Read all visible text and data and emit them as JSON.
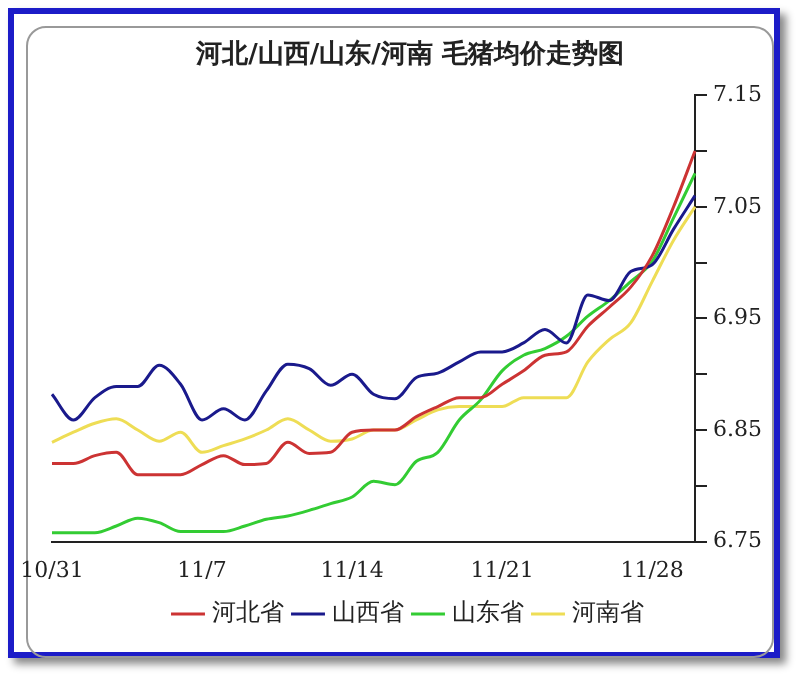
{
  "chart_data": {
    "type": "line",
    "title": "河北/山西/山东/河南 毛猪均价走势图",
    "categories": [
      "10/31",
      null,
      null,
      null,
      null,
      null,
      null,
      "11/7",
      null,
      null,
      null,
      null,
      null,
      null,
      "11/14",
      null,
      null,
      null,
      null,
      null,
      null,
      "11/21",
      null,
      null,
      null,
      null,
      null,
      null,
      "11/28",
      null,
      null
    ],
    "series": [
      {
        "name": "河北省",
        "color": "#cc3333",
        "values": [
          6.82,
          6.82,
          6.827,
          6.83,
          6.81,
          6.81,
          6.81,
          6.819,
          6.827,
          6.819,
          6.82,
          6.839,
          6.829,
          6.83,
          6.848,
          6.85,
          6.85,
          6.862,
          6.871,
          6.879,
          6.879,
          6.891,
          6.903,
          6.917,
          6.92,
          6.943,
          6.96,
          6.978,
          7.006,
          7.05,
          7.1
        ]
      },
      {
        "name": "山西省",
        "color": "#1a1a8c",
        "values": [
          6.882,
          6.859,
          6.879,
          6.889,
          6.889,
          6.908,
          6.891,
          6.859,
          6.869,
          6.859,
          6.885,
          6.909,
          6.905,
          6.89,
          6.9,
          6.882,
          6.878,
          6.897,
          6.901,
          6.911,
          6.92,
          6.92,
          6.928,
          6.94,
          6.928,
          6.971,
          6.966,
          6.992,
          6.998,
          7.03,
          7.06
        ]
      },
      {
        "name": "山东省",
        "color": "#33cc33",
        "values": [
          6.758,
          6.758,
          6.758,
          6.764,
          6.771,
          6.767,
          6.759,
          6.759,
          6.759,
          6.764,
          6.77,
          6.773,
          6.778,
          6.784,
          6.79,
          6.804,
          6.801,
          6.822,
          6.83,
          6.859,
          6.877,
          6.903,
          6.917,
          6.923,
          6.934,
          6.952,
          6.966,
          6.983,
          7.001,
          7.04,
          7.08
        ]
      },
      {
        "name": "河南省",
        "color": "#eedd55",
        "values": [
          6.839,
          6.848,
          6.856,
          6.86,
          6.85,
          6.84,
          6.848,
          6.83,
          6.836,
          6.842,
          6.85,
          6.86,
          6.85,
          6.84,
          6.842,
          6.85,
          6.85,
          6.859,
          6.868,
          6.871,
          6.871,
          6.871,
          6.879,
          6.879,
          6.879,
          6.911,
          6.931,
          6.946,
          6.983,
          7.02,
          7.05
        ]
      }
    ],
    "ylim": [
      6.75,
      7.15
    ],
    "yticks": [
      {
        "value": 6.75,
        "label": "6.75"
      },
      {
        "value": 6.8,
        "label": null
      },
      {
        "value": 6.85,
        "label": "6.85"
      },
      {
        "value": 6.9,
        "label": null
      },
      {
        "value": 6.95,
        "label": "6.95"
      },
      {
        "value": 7.0,
        "label": null
      },
      {
        "value": 7.05,
        "label": "7.05"
      },
      {
        "value": 7.1,
        "label": null
      },
      {
        "value": 7.15,
        "label": "7.15"
      }
    ],
    "legend": "bottom",
    "marker": "none"
  }
}
